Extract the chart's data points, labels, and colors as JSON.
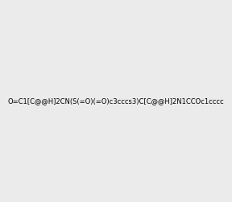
{
  "smiles": "O=C1[C@@H]2CN(S(=O)(=O)c3cccs3)C[C@@H]2N1CCOc1cccc(OC)c1",
  "image_size": 300,
  "background_color": "#ebebeb",
  "title": "",
  "dpi": 100
}
